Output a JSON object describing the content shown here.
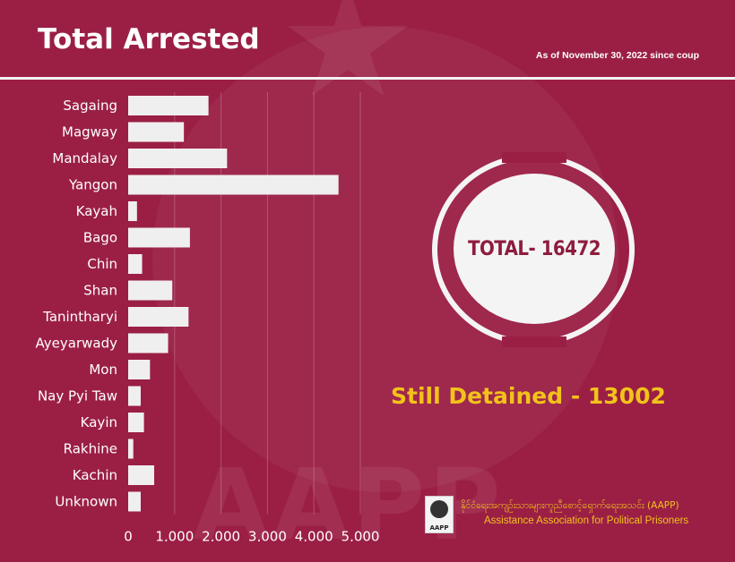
{
  "title": "Total Arrested",
  "date_note": "As of November 30, 2022 since coup",
  "total_label": "TOTAL- 16472",
  "detained_label": "Still Detained - 13002",
  "watermark": "AAPP",
  "logo_text": "AAPP",
  "org_name_local": "နိုင်ငံရေးအကျဉ်းသားများကူညီစောင့်ရှောက်ရေးအသင်း (AAPP)",
  "org_name_en": "Assistance Association for Political Prisoners",
  "colors": {
    "background": "#9b1f45",
    "bar": "#efefef",
    "text": "#ffffff",
    "accent": "#f2c21b",
    "total_text": "#8e1c3e"
  },
  "chart_data": {
    "type": "bar",
    "orientation": "horizontal",
    "categories": [
      "Sagaing",
      "Magway",
      "Mandalay",
      "Yangon",
      "Kayah",
      "Bago",
      "Chin",
      "Shan",
      "Tanintharyi",
      "Ayeyarwady",
      "Mon",
      "Nay Pyi Taw",
      "Kayin",
      "Rakhine",
      "Kachin",
      "Unknown"
    ],
    "values": [
      1730,
      1200,
      2130,
      4530,
      190,
      1330,
      300,
      950,
      1300,
      860,
      470,
      270,
      340,
      110,
      560,
      270
    ],
    "xlim": [
      0,
      5000
    ],
    "xticks": [
      "0",
      "1,000",
      "2,000",
      "3,000",
      "4,000",
      "5,000"
    ],
    "grid": true
  }
}
